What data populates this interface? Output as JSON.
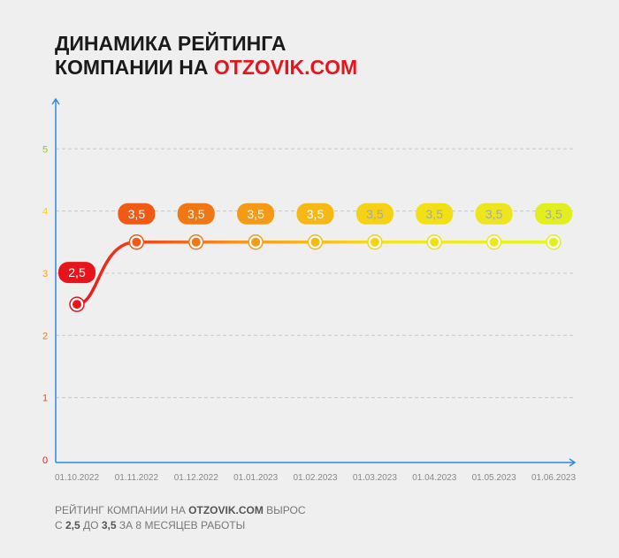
{
  "chart_data": {
    "type": "line",
    "title": {
      "line1": "ДИНАМИКА РЕЙТИНГА",
      "line2": "КОМПАНИИ НА ",
      "brand": "OTZOVIK.COM"
    },
    "categories": [
      "01.10.2022",
      "01.11.2022",
      "01.12.2022",
      "01.01.2023",
      "01.02.2023",
      "01.03.2023",
      "01.04.2023",
      "01.05.2023",
      "01.06.2023"
    ],
    "values": [
      2.5,
      3.5,
      3.5,
      3.5,
      3.5,
      3.5,
      3.5,
      3.5,
      3.5
    ],
    "value_labels": [
      "2,5",
      "3,5",
      "3,5",
      "3,5",
      "3,5",
      "3,5",
      "3,5",
      "3,5",
      "3,5"
    ],
    "label_colors": [
      "#e8141b",
      "#f05a14",
      "#f07814",
      "#f59a14",
      "#f5b814",
      "#f5d214",
      "#f0e014",
      "#ede61e",
      "#e2ef1e"
    ],
    "line_gradient": [
      "#e8141b",
      "#f7941d",
      "#f5e61e",
      "#e6f51e"
    ],
    "ylim": [
      0,
      5.8
    ],
    "yticks": [
      0,
      1,
      2,
      3,
      4,
      5
    ],
    "ytick_colors": [
      "#e8141b",
      "#f04a14",
      "#f07814",
      "#f5a014",
      "#f5d214",
      "#8ac926"
    ],
    "grid": true,
    "axis_color": "#2b8ae6",
    "footer": {
      "line1": [
        "РЕЙТИНГ КОМПАНИИ НА ",
        "OTZOVIK.COM",
        " ВЫРОС"
      ],
      "line2": [
        "С ",
        "2,5",
        " ДО ",
        "3,5",
        " ЗА 8 МЕСЯЦЕВ РАБОТЫ"
      ]
    }
  }
}
